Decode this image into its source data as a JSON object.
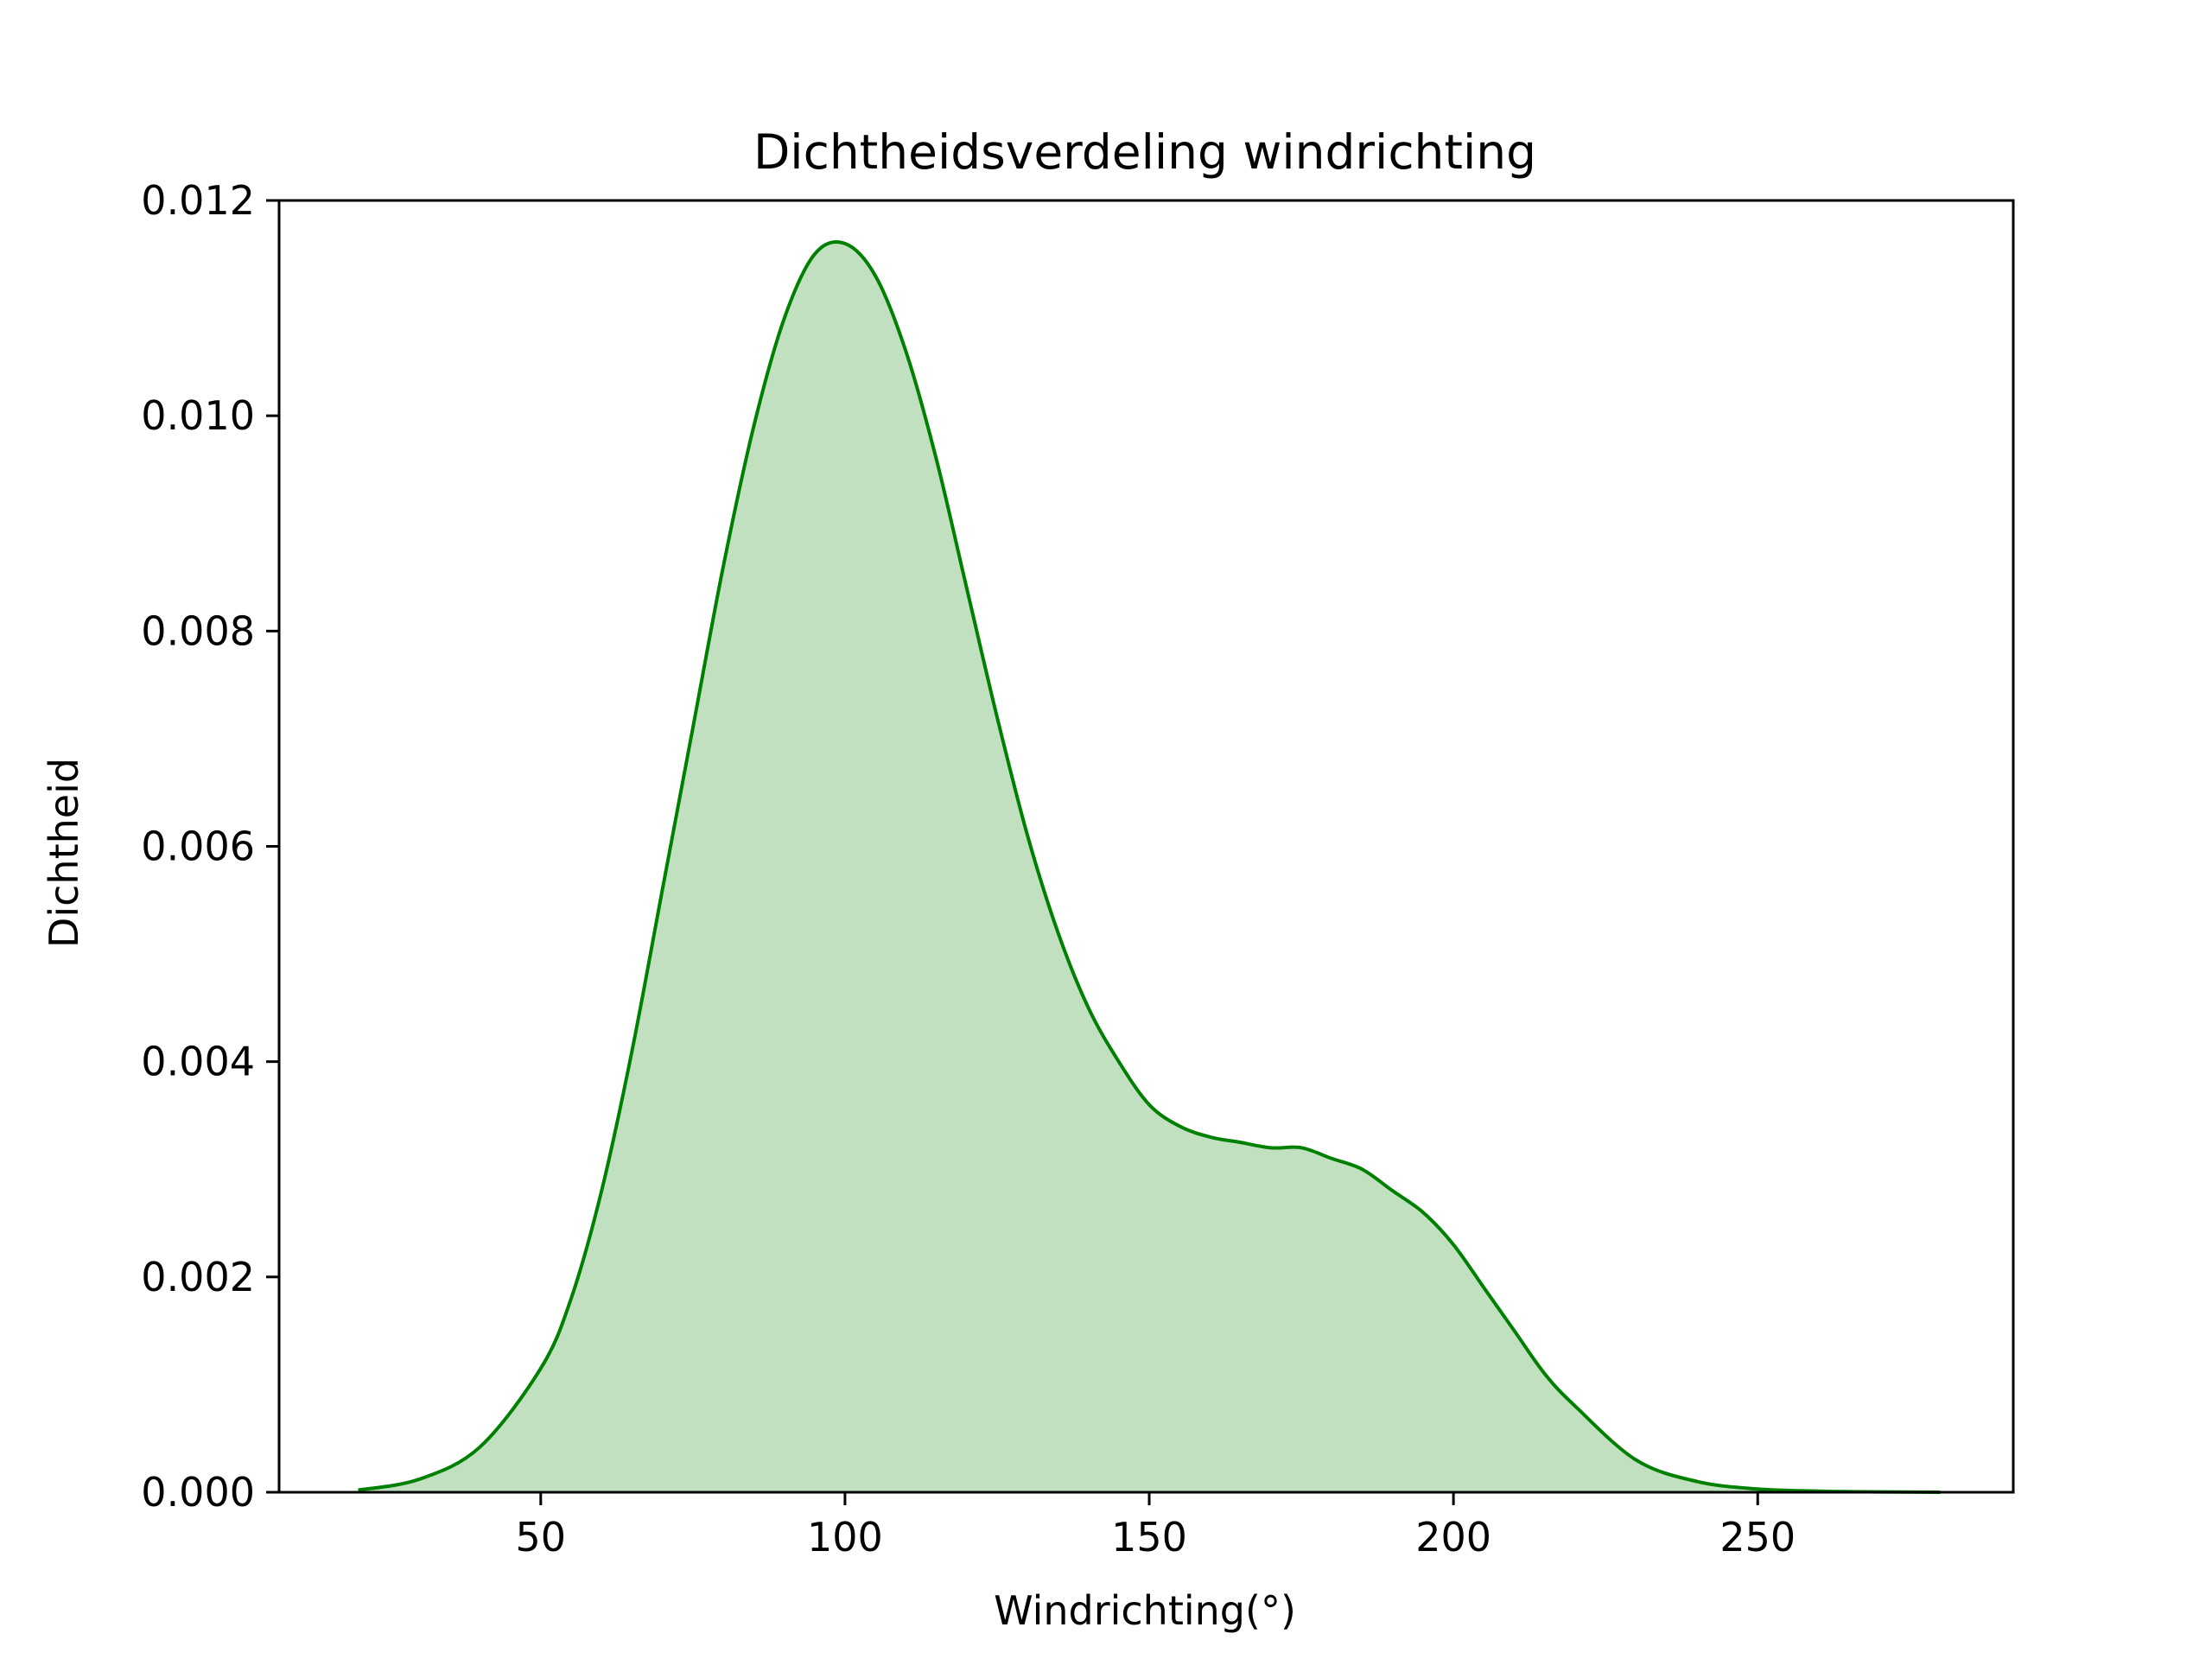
{
  "chart_data": {
    "type": "area",
    "title": "Dichtheidsverdeling windrichting",
    "xlabel": "Windrichting(°)",
    "ylabel": "Dichtheid",
    "xlim": [
      7,
      292
    ],
    "ylim": [
      0,
      0.012
    ],
    "xticks": [
      50,
      100,
      150,
      200,
      250
    ],
    "yticks": [
      0,
      0.002,
      0.004,
      0.006,
      0.008,
      0.01,
      0.012
    ],
    "xtick_labels": [
      "50",
      "100",
      "150",
      "200",
      "250"
    ],
    "ytick_labels": [
      "0.000",
      "0.002",
      "0.004",
      "0.006",
      "0.008",
      "0.010",
      "0.012"
    ],
    "grid": false,
    "line_color": "#008000",
    "fill_color": "#c0e0c0",
    "series": [
      {
        "x": [
          20,
          30,
          40,
          50,
          55,
          60,
          65,
          70,
          75,
          80,
          85,
          90,
          95,
          100,
          105,
          110,
          115,
          120,
          125,
          130,
          135,
          140,
          145,
          150,
          155,
          160,
          165,
          170,
          175,
          180,
          185,
          190,
          195,
          200,
          205,
          210,
          215,
          220,
          230,
          240,
          250,
          260,
          270,
          280
        ],
        "y": [
          2e-05,
          0.00012,
          0.00042,
          0.00115,
          0.0018,
          0.0028,
          0.0041,
          0.0056,
          0.0071,
          0.0086,
          0.0099,
          0.0109,
          0.0115,
          0.0116,
          0.0113,
          0.0106,
          0.0096,
          0.0084,
          0.0072,
          0.0061,
          0.0052,
          0.0045,
          0.004,
          0.0036,
          0.0034,
          0.0033,
          0.00325,
          0.0032,
          0.0032,
          0.0031,
          0.003,
          0.0028,
          0.0026,
          0.0023,
          0.0019,
          0.0015,
          0.0011,
          0.0008,
          0.0003,
          0.0001,
          3e-05,
          1e-05,
          3e-06,
          0.0
        ]
      }
    ]
  }
}
